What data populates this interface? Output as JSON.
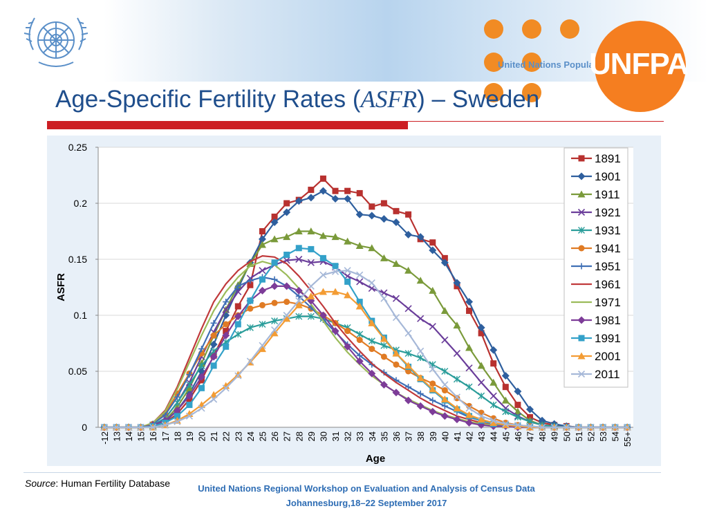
{
  "header": {
    "title_main": "Age-Specific Fertility Rates (",
    "title_italic": "ASFR",
    "title_end": ") – Sweden",
    "unfpa_logo_text": "UNFPA",
    "unfpa_tagline": "United Nations Population Fund"
  },
  "footer": {
    "source_label": "Source",
    "source_text": ": Human Fertility Database",
    "workshop": "United Nations Regional Workshop on Evaluation and Analysis of Census Data",
    "location_date": "Johannesburg,18–22 September 2017"
  },
  "chart_data": {
    "type": "line",
    "title": "",
    "xlabel": "Age",
    "ylabel": "ASFR",
    "ylim": [
      0,
      0.25
    ],
    "yticks": [
      "0",
      "0.05",
      "0.1",
      "0.15",
      "0.2",
      "0.25"
    ],
    "grid": true,
    "legend": "right",
    "categories": [
      "-12",
      "13",
      "14",
      "15",
      "16",
      "17",
      "18",
      "19",
      "20",
      "21",
      "22",
      "23",
      "24",
      "25",
      "26",
      "27",
      "28",
      "29",
      "30",
      "31",
      "32",
      "33",
      "34",
      "35",
      "36",
      "37",
      "38",
      "39",
      "40",
      "41",
      "42",
      "43",
      "44",
      "45",
      "46",
      "47",
      "48",
      "49",
      "50",
      "51",
      "52",
      "53",
      "54",
      "55+"
    ],
    "series": [
      {
        "name": "1891",
        "color": "#b8312f",
        "marker": "square",
        "values": [
          0,
          0,
          0,
          0,
          0.001,
          0.004,
          0.012,
          0.025,
          0.042,
          0.064,
          0.086,
          0.108,
          0.127,
          0.175,
          0.188,
          0.2,
          0.203,
          0.212,
          0.222,
          0.211,
          0.211,
          0.209,
          0.197,
          0.2,
          0.193,
          0.19,
          0.168,
          0.165,
          0.151,
          0.126,
          0.104,
          0.084,
          0.057,
          0.036,
          0.02,
          0.009,
          0.004,
          0.002,
          0.001,
          0,
          0,
          0,
          0,
          0
        ]
      },
      {
        "name": "1901",
        "color": "#2e5f9e",
        "marker": "diamond",
        "values": [
          0,
          0,
          0,
          0,
          0.001,
          0.005,
          0.015,
          0.03,
          0.05,
          0.074,
          0.1,
          0.124,
          0.147,
          0.168,
          0.183,
          0.192,
          0.202,
          0.205,
          0.211,
          0.204,
          0.204,
          0.19,
          0.189,
          0.186,
          0.183,
          0.172,
          0.17,
          0.158,
          0.147,
          0.129,
          0.112,
          0.089,
          0.069,
          0.046,
          0.032,
          0.016,
          0.006,
          0.003,
          0.001,
          0,
          0,
          0,
          0,
          0
        ]
      },
      {
        "name": "1911",
        "color": "#7a9a3a",
        "marker": "triangle",
        "values": [
          0,
          0,
          0,
          0,
          0.001,
          0.006,
          0.018,
          0.035,
          0.057,
          0.082,
          0.105,
          0.127,
          0.146,
          0.163,
          0.168,
          0.17,
          0.175,
          0.175,
          0.171,
          0.17,
          0.166,
          0.162,
          0.16,
          0.151,
          0.146,
          0.14,
          0.131,
          0.122,
          0.104,
          0.091,
          0.071,
          0.055,
          0.04,
          0.024,
          0.014,
          0.006,
          0.002,
          0.001,
          0,
          0,
          0,
          0,
          0,
          0
        ]
      },
      {
        "name": "1921",
        "color": "#6a3d9a",
        "marker": "x",
        "values": [
          0,
          0,
          0,
          0,
          0.002,
          0.008,
          0.022,
          0.04,
          0.063,
          0.085,
          0.105,
          0.121,
          0.133,
          0.14,
          0.145,
          0.149,
          0.15,
          0.147,
          0.148,
          0.143,
          0.135,
          0.13,
          0.124,
          0.12,
          0.115,
          0.106,
          0.097,
          0.09,
          0.078,
          0.066,
          0.053,
          0.04,
          0.028,
          0.017,
          0.01,
          0.005,
          0.002,
          0.001,
          0,
          0,
          0,
          0,
          0,
          0
        ]
      },
      {
        "name": "1931",
        "color": "#2a9d9a",
        "marker": "asterisk",
        "values": [
          0,
          0,
          0,
          0,
          0.002,
          0.008,
          0.022,
          0.038,
          0.055,
          0.068,
          0.076,
          0.083,
          0.089,
          0.092,
          0.095,
          0.097,
          0.099,
          0.099,
          0.097,
          0.093,
          0.089,
          0.083,
          0.077,
          0.073,
          0.069,
          0.066,
          0.062,
          0.056,
          0.05,
          0.043,
          0.036,
          0.028,
          0.02,
          0.014,
          0.009,
          0.005,
          0.002,
          0.001,
          0,
          0,
          0,
          0,
          0,
          0
        ]
      },
      {
        "name": "1941",
        "color": "#e07b24",
        "marker": "circle",
        "values": [
          0,
          0,
          0,
          0,
          0.003,
          0.012,
          0.03,
          0.048,
          0.066,
          0.082,
          0.092,
          0.1,
          0.106,
          0.109,
          0.111,
          0.112,
          0.11,
          0.106,
          0.1,
          0.093,
          0.086,
          0.078,
          0.07,
          0.063,
          0.056,
          0.05,
          0.044,
          0.039,
          0.033,
          0.026,
          0.019,
          0.013,
          0.008,
          0.004,
          0.002,
          0.001,
          0,
          0,
          0,
          0,
          0,
          0,
          0,
          0
        ]
      },
      {
        "name": "1951",
        "color": "#3f6fb5",
        "marker": "plus",
        "values": [
          0,
          0,
          0,
          0,
          0.003,
          0.011,
          0.027,
          0.047,
          0.07,
          0.093,
          0.112,
          0.126,
          0.131,
          0.134,
          0.132,
          0.126,
          0.117,
          0.107,
          0.096,
          0.085,
          0.074,
          0.064,
          0.056,
          0.049,
          0.042,
          0.036,
          0.03,
          0.024,
          0.019,
          0.014,
          0.009,
          0.006,
          0.003,
          0.002,
          0.001,
          0,
          0,
          0,
          0,
          0,
          0,
          0,
          0,
          0
        ]
      },
      {
        "name": "1961",
        "color": "#c0393b",
        "marker": "none",
        "values": [
          0,
          0,
          0,
          0,
          0.004,
          0.015,
          0.036,
          0.062,
          0.088,
          0.112,
          0.128,
          0.14,
          0.148,
          0.153,
          0.152,
          0.146,
          0.135,
          0.122,
          0.108,
          0.093,
          0.08,
          0.068,
          0.057,
          0.048,
          0.04,
          0.033,
          0.026,
          0.02,
          0.015,
          0.01,
          0.007,
          0.004,
          0.002,
          0.001,
          0,
          0,
          0,
          0,
          0,
          0,
          0,
          0,
          0,
          0
        ]
      },
      {
        "name": "1971",
        "color": "#9bbb59",
        "marker": "none",
        "values": [
          0,
          0,
          0,
          0,
          0.004,
          0.014,
          0.034,
          0.058,
          0.082,
          0.104,
          0.121,
          0.134,
          0.144,
          0.148,
          0.145,
          0.136,
          0.124,
          0.11,
          0.095,
          0.08,
          0.067,
          0.056,
          0.046,
          0.038,
          0.031,
          0.025,
          0.02,
          0.015,
          0.011,
          0.008,
          0.005,
          0.003,
          0.002,
          0.001,
          0,
          0,
          0,
          0,
          0,
          0,
          0,
          0,
          0,
          0
        ]
      },
      {
        "name": "1981",
        "color": "#7d3c98",
        "marker": "diamond",
        "values": [
          0,
          0,
          0,
          0,
          0.002,
          0.006,
          0.015,
          0.028,
          0.045,
          0.063,
          0.082,
          0.099,
          0.113,
          0.122,
          0.126,
          0.126,
          0.122,
          0.113,
          0.1,
          0.086,
          0.072,
          0.059,
          0.048,
          0.038,
          0.031,
          0.024,
          0.019,
          0.014,
          0.01,
          0.007,
          0.004,
          0.002,
          0.001,
          0.001,
          0,
          0,
          0,
          0,
          0,
          0,
          0,
          0,
          0,
          0
        ]
      },
      {
        "name": "1991",
        "color": "#33a1c9",
        "marker": "square",
        "values": [
          0,
          0,
          0,
          0,
          0.001,
          0.004,
          0.01,
          0.02,
          0.035,
          0.055,
          0.072,
          0.092,
          0.113,
          0.132,
          0.147,
          0.154,
          0.16,
          0.159,
          0.151,
          0.144,
          0.13,
          0.112,
          0.095,
          0.08,
          0.066,
          0.054,
          0.043,
          0.033,
          0.024,
          0.016,
          0.01,
          0.006,
          0.003,
          0.002,
          0.001,
          0,
          0,
          0,
          0,
          0,
          0,
          0,
          0,
          0
        ]
      },
      {
        "name": "2001",
        "color": "#f39c34",
        "marker": "triangle",
        "values": [
          0,
          0,
          0,
          0,
          0,
          0.002,
          0.006,
          0.012,
          0.02,
          0.029,
          0.037,
          0.047,
          0.058,
          0.07,
          0.084,
          0.097,
          0.109,
          0.117,
          0.121,
          0.121,
          0.118,
          0.108,
          0.093,
          0.079,
          0.066,
          0.055,
          0.044,
          0.034,
          0.025,
          0.017,
          0.011,
          0.007,
          0.004,
          0.002,
          0.001,
          0,
          0,
          0,
          0,
          0,
          0,
          0,
          0,
          0
        ]
      },
      {
        "name": "2011",
        "color": "#a6b8d8",
        "marker": "x",
        "values": [
          0,
          0,
          0,
          0,
          0,
          0.002,
          0.005,
          0.01,
          0.017,
          0.025,
          0.035,
          0.046,
          0.059,
          0.073,
          0.087,
          0.1,
          0.113,
          0.126,
          0.136,
          0.139,
          0.14,
          0.136,
          0.129,
          0.115,
          0.098,
          0.084,
          0.068,
          0.052,
          0.038,
          0.027,
          0.017,
          0.01,
          0.006,
          0.003,
          0.002,
          0.001,
          0,
          0,
          0,
          0,
          0,
          0,
          0,
          0
        ]
      }
    ]
  }
}
